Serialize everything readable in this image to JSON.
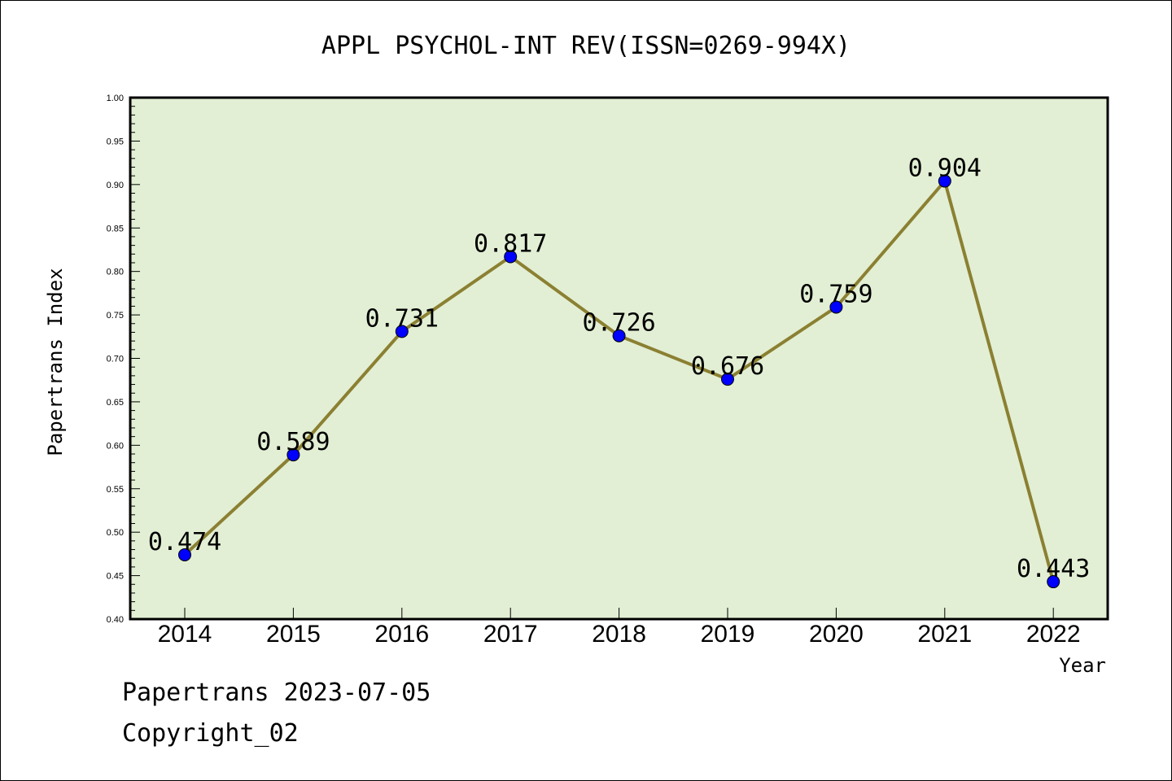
{
  "title": "APPL PSYCHOL-INT REV(ISSN=0269-994X)",
  "footer": {
    "line1": "Papertrans 2023-07-05",
    "line2": "Copyright_02"
  },
  "colors": {
    "plot_bg": "#e2efd4",
    "line": "#8b8032",
    "marker": "#0000ff",
    "axis": "#000000"
  },
  "chart_data": {
    "type": "line",
    "x": [
      "2014",
      "2015",
      "2016",
      "2017",
      "2018",
      "2019",
      "2020",
      "2021",
      "2022"
    ],
    "series": [
      {
        "values": [
          0.474,
          0.589,
          0.731,
          0.817,
          0.726,
          0.676,
          0.759,
          0.904,
          0.443
        ]
      }
    ],
    "data_labels": [
      "0.474",
      "0.589",
      "0.731",
      "0.817",
      "0.726",
      "0.676",
      "0.759",
      "0.904",
      "0.443"
    ],
    "xlabel": "Year",
    "ylabel": "Papertrans Index",
    "ylim": [
      0.4,
      1.0
    ],
    "yticks": [
      "0.40",
      "0.45",
      "0.50",
      "0.55",
      "0.60",
      "0.65",
      "0.70",
      "0.75",
      "0.80",
      "0.85",
      "0.90",
      "0.95",
      "1.00"
    ],
    "grid": false,
    "legend": false
  }
}
